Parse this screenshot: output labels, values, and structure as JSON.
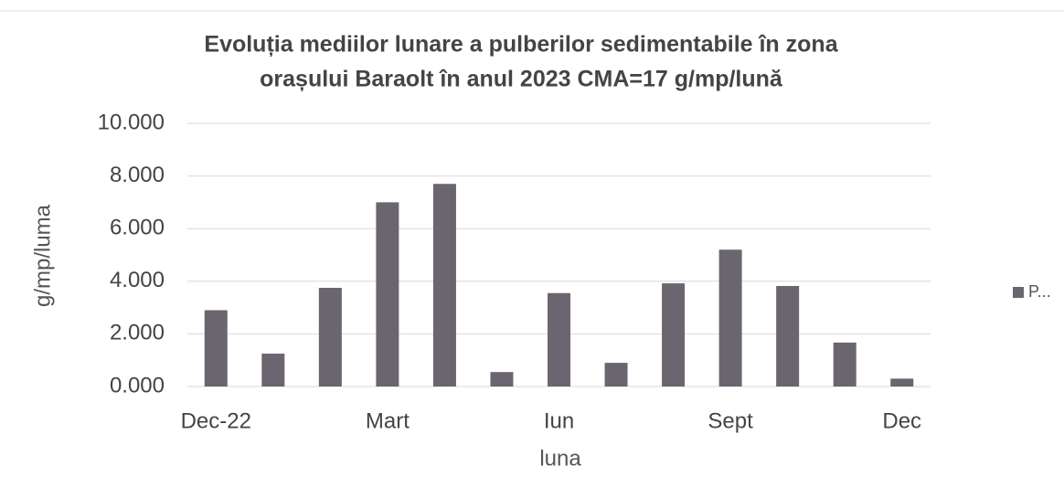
{
  "chart_data": {
    "type": "bar",
    "title": [
      "Evoluția mediilor lunare a pulberilor sedimentabile în zona",
      "orașului Baraolt în anul 2023 CMA=17 g/mp/lună"
    ],
    "x_label": "luna",
    "y_label": "g/mp/luma",
    "categories": [
      "Dec-22",
      null,
      null,
      "Mart",
      null,
      null,
      "Iun",
      null,
      null,
      "Sept",
      null,
      null,
      "Dec"
    ],
    "series": [
      {
        "name": "P...",
        "color": "#6b6570",
        "values": [
          2.9,
          1.25,
          3.75,
          7.0,
          7.7,
          0.55,
          3.55,
          0.9,
          3.92,
          5.2,
          3.82,
          1.67,
          0.3
        ]
      }
    ],
    "ylim": [
      0,
      10
    ],
    "yticks": [
      {
        "value": 0,
        "label": "0.000"
      },
      {
        "value": 2,
        "label": "2.000"
      },
      {
        "value": 4,
        "label": "4.000"
      },
      {
        "value": 6,
        "label": "6.000"
      },
      {
        "value": 8,
        "label": "8.000"
      },
      {
        "value": 10,
        "label": "10.000"
      }
    ],
    "grid": true,
    "legend": "right"
  }
}
